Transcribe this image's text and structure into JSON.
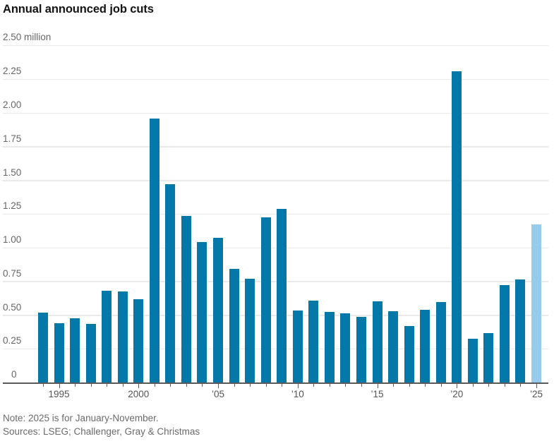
{
  "title": "Annual announced job cuts",
  "footer": {
    "note": "Note: 2025 is for January-November.",
    "sources": "Sources: LSEG; Challenger, Gray & Christmas"
  },
  "colors": {
    "bar": "#0578aa",
    "highlight_bar": "#96cbec",
    "gridline": "#e9e9e9",
    "axis": "#5a5a5b",
    "label_gray": "#666666"
  },
  "chart_data": {
    "type": "bar",
    "title": "Annual announced job cuts",
    "unit": "million job cuts",
    "ylim": [
      0,
      2.5
    ],
    "y_tick_step": 0.25,
    "grid": true,
    "legend_position": "none",
    "highlight_year": 2025,
    "highlight_meaning": "2025 is partial year (January-November)",
    "x": [
      1994,
      1995,
      1996,
      1997,
      1998,
      1999,
      2000,
      2001,
      2002,
      2003,
      2004,
      2005,
      2006,
      2007,
      2008,
      2009,
      2010,
      2011,
      2012,
      2013,
      2014,
      2015,
      2016,
      2017,
      2018,
      2019,
      2020,
      2021,
      2022,
      2023,
      2024,
      2025
    ],
    "values": [
      0.516,
      0.44,
      0.477,
      0.434,
      0.678,
      0.675,
      0.614,
      1.957,
      1.467,
      1.236,
      1.04,
      1.072,
      0.84,
      0.768,
      1.224,
      1.288,
      0.53,
      0.606,
      0.523,
      0.509,
      0.483,
      0.599,
      0.527,
      0.419,
      0.539,
      0.593,
      2.305,
      0.322,
      0.364,
      0.722,
      0.761,
      1.172
    ],
    "y_ticks": [
      {
        "v": 0.0,
        "label": "0"
      },
      {
        "v": 0.25,
        "label": "0.25"
      },
      {
        "v": 0.5,
        "label": "0.50"
      },
      {
        "v": 0.75,
        "label": "0.75"
      },
      {
        "v": 1.0,
        "label": "1.00"
      },
      {
        "v": 1.25,
        "label": "1.25"
      },
      {
        "v": 1.5,
        "label": "1.50"
      },
      {
        "v": 1.75,
        "label": "1.75"
      },
      {
        "v": 2.0,
        "label": "2.00"
      },
      {
        "v": 2.25,
        "label": "2.25"
      },
      {
        "v": 2.5,
        "label": "2.50 million"
      }
    ],
    "x_tick_labels": {
      "1995": "1995",
      "2000": "2000",
      "2005": "’05",
      "2010": "’10",
      "2015": "’15",
      "2020": "’20",
      "2025": "’25"
    }
  }
}
